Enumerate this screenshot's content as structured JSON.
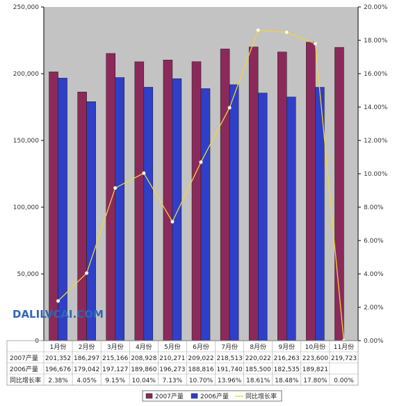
{
  "chart_data": {
    "type": "bar",
    "categories": [
      "1月份",
      "2月份",
      "3月份",
      "4月份",
      "5月份",
      "6月份",
      "7月份",
      "8月份",
      "9月份",
      "10月份",
      "11月份"
    ],
    "series": [
      {
        "name": "2007产量",
        "kind": "bar",
        "color": "#8b2a5a",
        "values": [
          201352,
          186297,
          215166,
          208928,
          210271,
          209022,
          218513,
          220022,
          216263,
          223600,
          219723
        ],
        "labels": [
          "201,352",
          "186,297",
          "215,166",
          "208,928",
          "210,271",
          "209,022",
          "218,513",
          "220,022",
          "216,263",
          "223,600",
          "219,723"
        ]
      },
      {
        "name": "2006产量",
        "kind": "bar",
        "color": "#2f3fc8",
        "values": [
          196676,
          179042,
          197127,
          189860,
          196273,
          188816,
          191740,
          185500,
          182535,
          189821,
          null
        ],
        "labels": [
          "196,676",
          "179,042",
          "197,127",
          "189,860",
          "196,273",
          "188,816",
          "191,740",
          "185,500",
          "182,535",
          "189,821",
          ""
        ]
      },
      {
        "name": "同比增长率",
        "kind": "line",
        "axis": "right",
        "color": "#f2d43a",
        "values": [
          2.38,
          4.05,
          9.15,
          10.04,
          7.13,
          10.7,
          13.96,
          18.61,
          18.48,
          17.8,
          0.0
        ],
        "labels": [
          "2.38%",
          "4.05%",
          "9.15%",
          "10.04%",
          "7.13%",
          "10.70%",
          "13.96%",
          "18.61%",
          "18.48%",
          "17.80%",
          "0.00%"
        ]
      }
    ],
    "ylim": [
      0,
      250000
    ],
    "y_ticks": [
      "0",
      "50,000",
      "100,000",
      "150,000",
      "200,000",
      "250,000"
    ],
    "y2lim": [
      0,
      20
    ],
    "y2_ticks": [
      "0.00%",
      "2.00%",
      "4.00%",
      "6.00%",
      "8.00%",
      "10.00%",
      "12.00%",
      "14.00%",
      "16.00%",
      "18.00%",
      "20.00%"
    ],
    "grid": false,
    "legend": "bottom",
    "data_table": true
  },
  "watermark": "DALILVCAI.COM",
  "colors": {
    "plot_bg": "#c3c3c3",
    "watermark": "#2f67b6"
  }
}
